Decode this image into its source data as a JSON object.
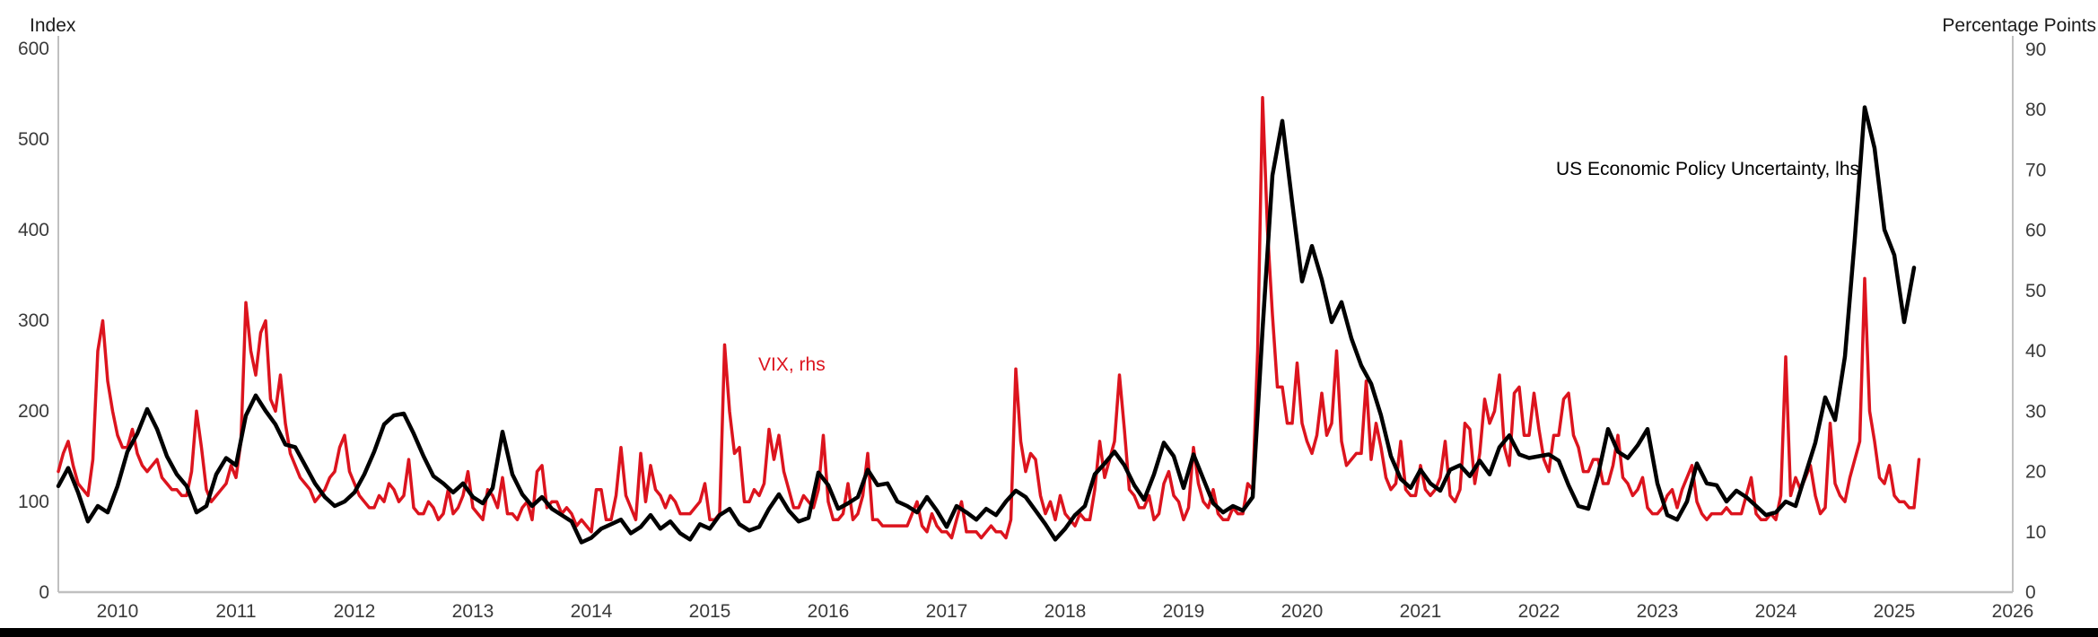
{
  "colors": {
    "epu_line": "#000000",
    "vix_line": "#dc141e",
    "axis_line": "#c0c0c0",
    "tick_text": "#3a3a3a",
    "axis_title_text": "#1a1a1a",
    "footer_bar": "#000000",
    "background": "#ffffff"
  },
  "series_labels": {
    "epu": "US Economic Policy Uncertainty, lhs",
    "vix": "VIX, rhs"
  },
  "chart_data": {
    "type": "line",
    "title": "",
    "left_axis": {
      "label": "Index",
      "min": 0,
      "max": 600,
      "ticks": [
        0,
        100,
        200,
        300,
        400,
        500,
        600
      ]
    },
    "right_axis": {
      "label": "Percentage Points",
      "min": 0,
      "max": 90,
      "ticks": [
        0,
        10,
        20,
        30,
        40,
        50,
        60,
        70,
        80,
        90
      ]
    },
    "x_axis": {
      "domain": [
        2010.0,
        2026.5
      ],
      "labels": [
        2010,
        2011,
        2012,
        2013,
        2014,
        2015,
        2016,
        2017,
        2018,
        2019,
        2020,
        2021,
        2022,
        2023,
        2024,
        2025,
        2026
      ]
    },
    "grid": false,
    "legend_position": "inline-annotations",
    "series": [
      {
        "name": "US Economic Policy Uncertainty, lhs",
        "axis": "left",
        "frequency": "monthly",
        "start": 2010.0,
        "step_years": 0.0833333,
        "values": [
          117,
          137,
          110,
          78,
          95,
          88,
          117,
          155,
          175,
          202,
          180,
          150,
          130,
          117,
          88,
          95,
          130,
          148,
          140,
          195,
          217,
          200,
          185,
          163,
          160,
          140,
          120,
          105,
          95,
          100,
          110,
          130,
          155,
          185,
          195,
          197,
          175,
          150,
          128,
          120,
          110,
          120,
          105,
          98,
          115,
          177,
          130,
          108,
          95,
          105,
          92,
          85,
          78,
          55,
          60,
          70,
          75,
          80,
          65,
          72,
          85,
          70,
          78,
          65,
          58,
          75,
          70,
          85,
          92,
          75,
          68,
          72,
          92,
          108,
          90,
          78,
          82,
          132,
          118,
          92,
          98,
          105,
          135,
          118,
          120,
          100,
          95,
          88,
          105,
          90,
          72,
          95,
          88,
          80,
          92,
          85,
          100,
          112,
          105,
          90,
          75,
          58,
          70,
          85,
          95,
          130,
          142,
          155,
          140,
          118,
          102,
          130,
          165,
          150,
          115,
          152,
          125,
          98,
          88,
          95,
          90,
          105,
          290,
          460,
          520,
          430,
          343,
          382,
          345,
          298,
          320,
          280,
          250,
          230,
          195,
          150,
          125,
          115,
          135,
          120,
          112,
          135,
          140,
          128,
          145,
          130,
          160,
          173,
          152,
          148,
          150,
          152,
          145,
          118,
          95,
          92,
          130,
          180,
          155,
          148,
          162,
          180,
          120,
          85,
          80,
          100,
          142,
          120,
          118,
          100,
          112,
          105,
          95,
          85,
          88,
          100,
          95,
          130,
          165,
          215,
          190,
          260,
          390,
          535,
          490,
          400,
          372,
          298,
          358
        ]
      },
      {
        "name": "VIX, rhs",
        "axis": "right",
        "frequency": "semi-monthly",
        "start": 2010.0,
        "step_years": 0.0416667,
        "values": [
          20,
          23,
          25,
          21,
          18,
          17,
          16,
          22,
          40,
          45,
          35,
          30,
          26,
          24,
          24,
          27,
          23,
          21,
          20,
          21,
          22,
          19,
          18,
          17,
          17,
          16,
          16,
          20,
          30,
          24,
          17,
          15,
          16,
          17,
          18,
          21,
          19,
          25,
          48,
          40,
          36,
          43,
          45,
          32,
          30,
          36,
          28,
          23,
          21,
          19,
          18,
          17,
          15,
          16,
          17,
          19,
          20,
          24,
          26,
          20,
          18,
          16,
          15,
          14,
          14,
          16,
          15,
          18,
          17,
          15,
          16,
          22,
          14,
          13,
          13,
          15,
          14,
          12,
          13,
          17,
          13,
          14,
          16,
          20,
          14,
          13,
          12,
          17,
          16,
          14,
          19,
          13,
          13,
          12,
          14,
          15,
          12,
          20,
          21,
          14,
          15,
          15,
          13,
          14,
          13,
          11,
          12,
          11,
          10,
          17,
          17,
          12,
          12,
          16,
          24,
          16,
          14,
          12,
          23,
          15,
          21,
          17,
          16,
          14,
          16,
          15,
          13,
          13,
          13,
          14,
          15,
          18,
          12,
          12,
          13,
          41,
          30,
          23,
          24,
          15,
          15,
          17,
          16,
          18,
          27,
          22,
          26,
          20,
          17,
          14,
          14,
          16,
          15,
          14,
          17,
          26,
          15,
          12,
          12,
          13,
          18,
          12,
          13,
          16,
          23,
          12,
          12,
          11,
          11,
          11,
          11,
          11,
          11,
          13,
          15,
          11,
          10,
          13,
          11,
          10,
          10,
          9,
          12,
          15,
          10,
          10,
          10,
          9,
          10,
          11,
          10,
          10,
          9,
          12,
          37,
          25,
          20,
          23,
          22,
          16,
          13,
          15,
          12,
          16,
          13,
          12,
          11,
          13,
          12,
          12,
          17,
          25,
          19,
          22,
          25,
          36,
          27,
          17,
          16,
          14,
          14,
          16,
          12,
          13,
          18,
          20,
          16,
          15,
          12,
          14,
          24,
          18,
          15,
          14,
          17,
          13,
          12,
          12,
          14,
          13,
          13,
          18,
          17,
          40,
          82,
          60,
          46,
          34,
          34,
          28,
          28,
          38,
          28,
          25,
          23,
          26,
          33,
          26,
          28,
          40,
          25,
          21,
          22,
          23,
          23,
          35,
          22,
          28,
          24,
          19,
          17,
          18,
          25,
          17,
          16,
          16,
          21,
          17,
          16,
          17,
          19,
          25,
          16,
          15,
          17,
          28,
          27,
          18,
          23,
          32,
          28,
          30,
          36,
          24,
          21,
          33,
          34,
          26,
          26,
          33,
          27,
          22,
          20,
          26,
          26,
          32,
          33,
          26,
          24,
          20,
          20,
          22,
          22,
          18,
          18,
          21,
          26,
          19,
          18,
          16,
          17,
          19,
          14,
          13,
          13,
          14,
          16,
          17,
          14,
          17,
          19,
          21,
          15,
          13,
          12,
          13,
          13,
          13,
          14,
          13,
          13,
          13,
          16,
          19,
          13,
          12,
          12,
          13,
          12,
          16,
          39,
          16,
          19,
          17,
          19,
          21,
          16,
          13,
          14,
          28,
          18,
          16,
          15,
          19,
          22,
          25,
          52,
          30,
          25,
          19,
          18,
          21,
          16,
          15,
          15,
          14,
          14,
          22
        ]
      }
    ]
  }
}
